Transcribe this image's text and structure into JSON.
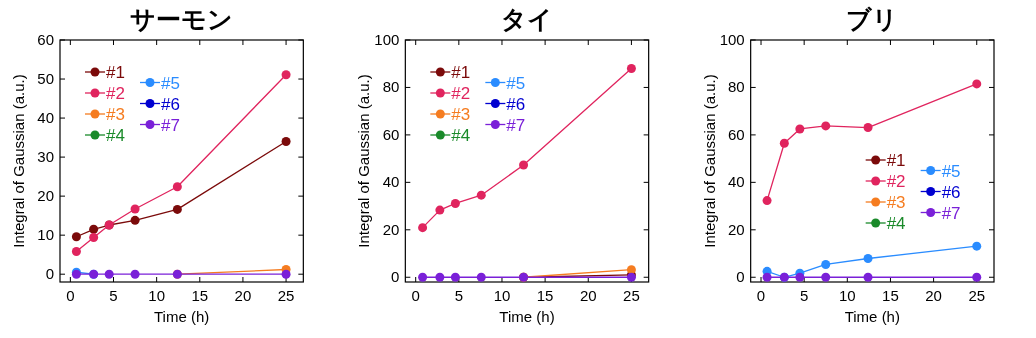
{
  "chart_data": [
    {
      "type": "line",
      "title": "サーモン",
      "xlabel": "Time (h)",
      "ylabel": "Integral of Gaussian (a.u.)",
      "x": [
        0.7,
        2.7,
        4.5,
        7.5,
        12.4,
        25
      ],
      "xlim": [
        -1.2,
        27
      ],
      "ylim": [
        -2,
        60
      ],
      "xticks": [
        0,
        5,
        10,
        15,
        20,
        25
      ],
      "yticks": [
        0,
        10,
        20,
        30,
        40,
        50,
        60
      ],
      "marker": "circle",
      "legend": "top left",
      "grid": false,
      "series": [
        {
          "name": "#1",
          "color": "#7b0a0a",
          "values": [
            9.6,
            11.5,
            12.6,
            13.8,
            16.6,
            34
          ]
        },
        {
          "name": "#2",
          "color": "#e0245e",
          "values": [
            5.8,
            9.4,
            12.6,
            16.7,
            22.4,
            51.1
          ]
        },
        {
          "name": "#3",
          "color": "#f57c20",
          "values": [
            null,
            null,
            null,
            null,
            0,
            1.2
          ]
        },
        {
          "name": "#4",
          "color": "#1a8a2a",
          "values": [
            null,
            null,
            null,
            null,
            null,
            null
          ]
        },
        {
          "name": "#5",
          "color": "#2a8cff",
          "values": [
            0.5,
            0,
            null,
            null,
            null,
            null
          ]
        },
        {
          "name": "#6",
          "color": "#0000d0",
          "values": [
            null,
            null,
            null,
            null,
            null,
            null
          ]
        },
        {
          "name": "#7",
          "color": "#7a20d8",
          "values": [
            0,
            0,
            0,
            0,
            0,
            0
          ]
        }
      ]
    },
    {
      "type": "line",
      "title": "タイ",
      "xlabel": "Time (h)",
      "ylabel": "Integral of Gaussian (a.u.)",
      "x": [
        0.8,
        2.8,
        4.6,
        7.6,
        12.5,
        25
      ],
      "xlim": [
        -1.2,
        27
      ],
      "ylim": [
        -2,
        100
      ],
      "xticks": [
        0,
        5,
        10,
        15,
        20,
        25
      ],
      "yticks": [
        0,
        20,
        40,
        60,
        80,
        100
      ],
      "marker": "circle",
      "legend": "top left",
      "grid": false,
      "series": [
        {
          "name": "#1",
          "color": "#7b0a0a",
          "values": [
            null,
            null,
            null,
            null,
            0,
            1
          ]
        },
        {
          "name": "#2",
          "color": "#e0245e",
          "values": [
            20.9,
            28.3,
            31.1,
            34.6,
            47.3,
            88
          ]
        },
        {
          "name": "#3",
          "color": "#f57c20",
          "values": [
            null,
            null,
            null,
            null,
            0,
            3.2
          ]
        },
        {
          "name": "#4",
          "color": "#1a8a2a",
          "values": [
            null,
            null,
            null,
            null,
            null,
            null
          ]
        },
        {
          "name": "#5",
          "color": "#2a8cff",
          "values": [
            null,
            null,
            null,
            null,
            null,
            null
          ]
        },
        {
          "name": "#6",
          "color": "#0000d0",
          "values": [
            null,
            null,
            null,
            null,
            null,
            null
          ]
        },
        {
          "name": "#7",
          "color": "#7a20d8",
          "values": [
            0,
            0,
            0,
            0,
            0,
            0
          ]
        }
      ]
    },
    {
      "type": "line",
      "title": "ブリ",
      "xlabel": "Time (h)",
      "ylabel": "Integral of Gaussian (a.u.)",
      "x": [
        0.7,
        2.7,
        4.5,
        7.5,
        12.4,
        25
      ],
      "xlim": [
        -1.2,
        27
      ],
      "ylim": [
        -2,
        100
      ],
      "xticks": [
        0,
        5,
        10,
        15,
        20,
        25
      ],
      "yticks": [
        0,
        20,
        40,
        60,
        80,
        100
      ],
      "marker": "circle",
      "legend": "right",
      "grid": false,
      "series": [
        {
          "name": "#1",
          "color": "#7b0a0a",
          "values": [
            null,
            null,
            null,
            null,
            null,
            null
          ]
        },
        {
          "name": "#2",
          "color": "#e0245e",
          "values": [
            32.3,
            56.5,
            62.5,
            63.8,
            63.1,
            81.5
          ]
        },
        {
          "name": "#3",
          "color": "#f57c20",
          "values": [
            null,
            null,
            null,
            null,
            null,
            null
          ]
        },
        {
          "name": "#4",
          "color": "#1a8a2a",
          "values": [
            null,
            null,
            null,
            null,
            null,
            null
          ]
        },
        {
          "name": "#5",
          "color": "#2a8cff",
          "values": [
            2.5,
            0,
            1.7,
            5.4,
            7.9,
            13.1
          ]
        },
        {
          "name": "#6",
          "color": "#0000d0",
          "values": [
            null,
            null,
            null,
            null,
            null,
            null
          ]
        },
        {
          "name": "#7",
          "color": "#7a20d8",
          "values": [
            0,
            0,
            0,
            0,
            0,
            0
          ]
        }
      ]
    }
  ]
}
